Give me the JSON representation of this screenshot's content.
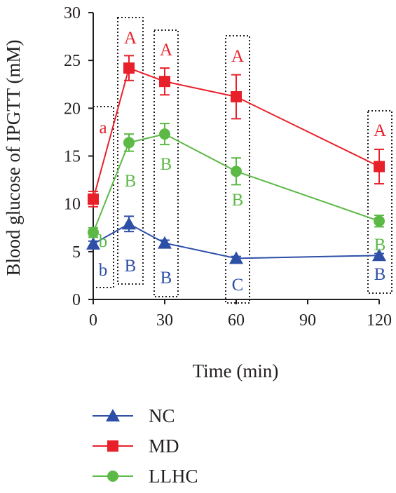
{
  "chart_data": {
    "type": "line",
    "xlabel": "Time (min)",
    "ylabel": "Blood glucose of IPGTT (mM)",
    "x_ticks": [
      0,
      30,
      60,
      90,
      120
    ],
    "y_ticks": [
      0,
      5,
      10,
      15,
      20,
      25,
      30
    ],
    "xlim": [
      0,
      120
    ],
    "ylim": [
      0,
      30
    ],
    "x": [
      0,
      15,
      30,
      60,
      120
    ],
    "series": [
      {
        "name": "NC",
        "color": "#2e4fa8",
        "marker": "triangle",
        "values": [
          5.8,
          7.9,
          5.9,
          4.3,
          4.6
        ],
        "error": [
          0.3,
          0.8,
          0.3,
          0.2,
          0.2
        ],
        "letters": [
          "b",
          "B",
          "B",
          "C",
          "B"
        ]
      },
      {
        "name": "MD",
        "color": "#e8202a",
        "marker": "square",
        "values": [
          10.5,
          24.2,
          22.8,
          21.2,
          13.9
        ],
        "error": [
          0.8,
          1.3,
          1.4,
          2.3,
          1.8
        ],
        "letters": [
          "a",
          "A",
          "A",
          "A",
          "A"
        ]
      },
      {
        "name": "LLHC",
        "color": "#5cb946",
        "marker": "circle",
        "values": [
          7.0,
          16.4,
          17.3,
          13.4,
          8.2
        ],
        "error": [
          0.5,
          0.9,
          1.1,
          1.4,
          0.6
        ],
        "letters": [
          "b",
          "B",
          "B",
          "B",
          "B"
        ]
      }
    ],
    "grid": false,
    "legend_position": "bottom-left"
  }
}
